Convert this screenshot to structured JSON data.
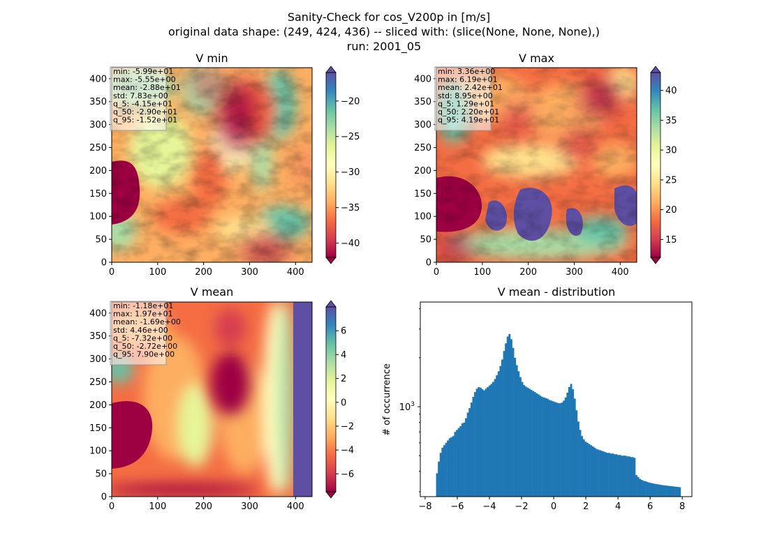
{
  "figure": {
    "suptitle_lines": [
      "Sanity-Check for cos_V200p in [m/s]",
      "original data shape: (249, 424, 436) -- sliced with: (slice(None, None, None),)",
      "run: 2001_05"
    ]
  },
  "chart_data": [
    {
      "type": "heatmap",
      "title": "V min",
      "colormap": "Spectral",
      "x_ticks": [
        "0",
        "100",
        "200",
        "300",
        "400"
      ],
      "y_ticks": [
        "0",
        "50",
        "100",
        "150",
        "200",
        "250",
        "300",
        "350",
        "400"
      ],
      "xlim": [
        0,
        436
      ],
      "ylim": [
        0,
        424
      ],
      "colorbar_range": [
        -42,
        -16
      ],
      "colorbar_ticks": [
        "−40",
        "−35",
        "−30",
        "−25",
        "−20"
      ],
      "stats": [
        "min: -5.99e+01",
        "max: -5.55e+00",
        "mean: -2.88e+01",
        "std: 7.83e+00",
        "q_5: -4.15e+01",
        "q_50: -2.90e+01",
        "q_95: -1.52e+01"
      ]
    },
    {
      "type": "heatmap",
      "title": "V max",
      "colormap": "Spectral",
      "x_ticks": [
        "0",
        "100",
        "200",
        "300",
        "400"
      ],
      "y_ticks": [
        "0",
        "50",
        "100",
        "150",
        "200",
        "250",
        "300",
        "350",
        "400"
      ],
      "xlim": [
        0,
        436
      ],
      "ylim": [
        0,
        424
      ],
      "colorbar_range": [
        12,
        43
      ],
      "colorbar_ticks": [
        "15",
        "20",
        "25",
        "30",
        "35",
        "40"
      ],
      "stats": [
        "min: 3.36e+00",
        "max: 6.19e+01",
        "mean: 2.42e+01",
        "std: 8.95e+00",
        "q_5: 1.29e+01",
        "q_50: 2.20e+01",
        "q_95: 4.19e+01"
      ]
    },
    {
      "type": "heatmap",
      "title": "V mean",
      "colormap": "Spectral",
      "x_ticks": [
        "0",
        "100",
        "200",
        "300",
        "400"
      ],
      "y_ticks": [
        "0",
        "50",
        "100",
        "150",
        "200",
        "250",
        "300",
        "350",
        "400"
      ],
      "xlim": [
        0,
        436
      ],
      "ylim": [
        0,
        424
      ],
      "colorbar_range": [
        -7.5,
        8
      ],
      "colorbar_ticks": [
        "−6",
        "−4",
        "−2",
        "0",
        "2",
        "4",
        "6"
      ],
      "stats": [
        "min: -1.18e+01",
        "max: 1.97e+01",
        "mean: -1.69e+00",
        "std: 4.46e+00",
        "q_5: -7.32e+00",
        "q_50: -2.72e+00",
        "q_95: 7.90e+00"
      ]
    },
    {
      "type": "bar",
      "title": "V mean - distribution",
      "xlabel": "",
      "ylabel": "# of occurrence",
      "y_scale": "log",
      "color": "#1f77b4",
      "xlim": [
        -8.3,
        8.6
      ],
      "ylim": [
        280,
        4400
      ],
      "x_ticks": [
        "−8",
        "−6",
        "−4",
        "−2",
        "0",
        "2",
        "4",
        "6",
        "8"
      ],
      "y_tick_label": "10",
      "y_tick_exp": "3",
      "x_start": -7.32,
      "x_end": 7.9,
      "values": [
        390,
        460,
        520,
        560,
        580,
        600,
        620,
        640,
        650,
        660,
        700,
        720,
        740,
        760,
        790,
        800,
        850,
        920,
        980,
        1060,
        1150,
        1230,
        1290,
        1320,
        1310,
        1280,
        1260,
        1290,
        1320,
        1350,
        1380,
        1420,
        1480,
        1560,
        1650,
        1780,
        1950,
        2200,
        2450,
        2700,
        2800,
        2600,
        2300,
        2000,
        1800,
        1650,
        1520,
        1420,
        1360,
        1330,
        1310,
        1290,
        1270,
        1250,
        1230,
        1210,
        1190,
        1170,
        1150,
        1140,
        1130,
        1120,
        1100,
        1090,
        1080,
        1070,
        1060,
        1050,
        1050,
        1060,
        1090,
        1140,
        1220,
        1320,
        1380,
        1280,
        1120,
        950,
        810,
        720,
        660,
        630,
        610,
        600,
        590,
        580,
        570,
        560,
        550,
        545,
        540,
        535,
        530,
        525,
        520,
        520,
        515,
        515,
        510,
        510,
        505,
        505,
        500,
        500,
        500,
        495,
        495,
        490,
        490,
        485,
        380,
        370,
        360,
        355,
        350,
        348,
        345,
        342,
        340,
        338,
        336,
        335,
        333,
        332,
        330,
        329,
        328,
        327,
        326,
        325,
        324,
        323,
        322,
        321,
        320
      ]
    }
  ]
}
